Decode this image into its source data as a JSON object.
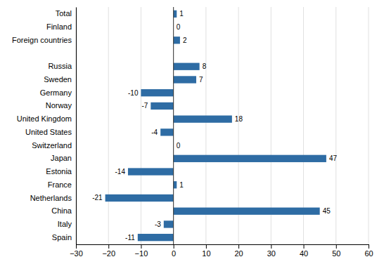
{
  "chart_data": {
    "type": "bar",
    "orientation": "horizontal",
    "categories": [
      "Spain",
      "Italy",
      "China",
      "Netherlands",
      "France",
      "Estonia",
      "Japan",
      "Switzerland",
      "United States",
      "United Kingdom",
      "Norway",
      "Germany",
      "Sweden",
      "Russia",
      null,
      "Foreign countries",
      "Finland",
      "Total"
    ],
    "values": [
      -11,
      -3,
      45,
      -21,
      1,
      -14,
      47,
      0,
      -4,
      18,
      -7,
      -10,
      7,
      8,
      null,
      2,
      0,
      1
    ],
    "color": "#2E6CA4",
    "xlim": [
      -30,
      60
    ],
    "xticks": [
      {
        "value": -30,
        "label": "−30"
      },
      {
        "value": -20,
        "label": "−20"
      },
      {
        "value": -10,
        "label": "−10"
      },
      0,
      10,
      20,
      30,
      40,
      50,
      60
    ],
    "grid": true,
    "data_labels": true
  }
}
